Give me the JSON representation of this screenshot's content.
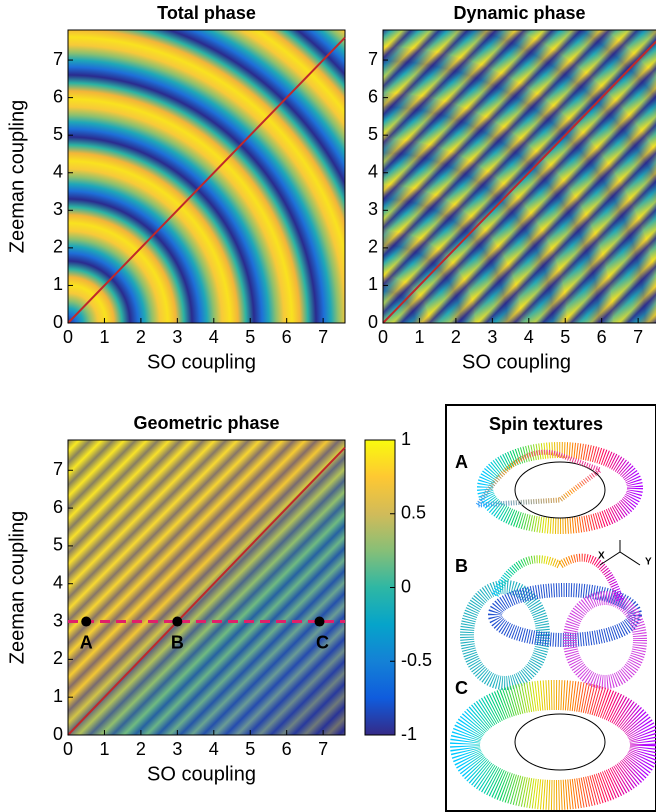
{
  "chart_data": [
    {
      "type": "heatmap",
      "title": "Total phase",
      "x_label": "SO coupling",
      "y_label": "Zeeman coupling",
      "xlim": [
        0,
        7.6
      ],
      "ylim": [
        0,
        7.8
      ],
      "xticks": [
        0,
        1,
        2,
        3,
        4,
        5,
        6,
        7
      ],
      "yticks": [
        0,
        1,
        2,
        3,
        4,
        5,
        6,
        7
      ]
    },
    {
      "type": "heatmap",
      "title": "Dynamic phase",
      "x_label": "SO coupling",
      "xlim": [
        0,
        7.6
      ],
      "ylim": [
        0,
        7.8
      ],
      "xticks": [
        0,
        1,
        2,
        3,
        4,
        5,
        6,
        7
      ],
      "yticks": [
        0,
        1,
        2,
        3,
        4,
        5,
        6,
        7
      ]
    },
    {
      "type": "heatmap",
      "title": "Geometric phase",
      "x_label": "SO coupling",
      "y_label": "Zeeman coupling",
      "xlim": [
        0,
        7.6
      ],
      "ylim": [
        0,
        7.8
      ],
      "xticks": [
        0,
        1,
        2,
        3,
        4,
        5,
        6,
        7
      ],
      "yticks": [
        0,
        1,
        2,
        3,
        4,
        5,
        6,
        7
      ],
      "colorbar": {
        "lim": [
          -1,
          1
        ],
        "ticks": [
          1,
          0.5,
          0,
          -0.5,
          -1
        ]
      },
      "points": [
        {
          "label": "A",
          "x": 0.5,
          "y": 3
        },
        {
          "label": "B",
          "x": 3,
          "y": 3
        },
        {
          "label": "C",
          "x": 6.9,
          "y": 3
        }
      ]
    }
  ],
  "spin_textures": {
    "title": "Spin textures",
    "panels": [
      "A",
      "B",
      "C"
    ],
    "axes": [
      "X",
      "Y"
    ]
  }
}
